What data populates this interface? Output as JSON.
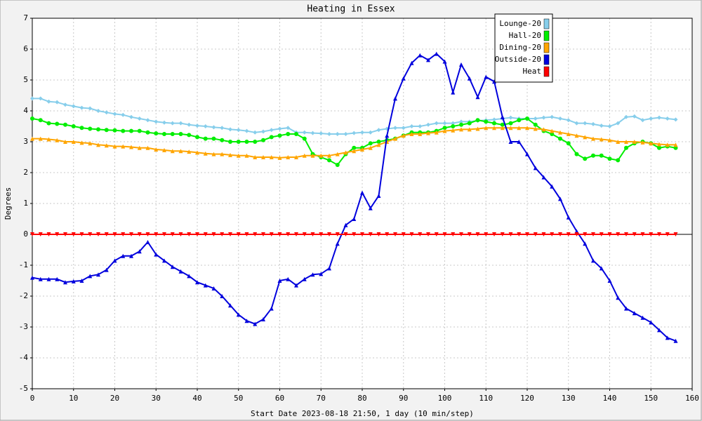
{
  "chart_data": {
    "type": "line",
    "title": "Heating in Essex",
    "x_label": "Start Date 2023-08-18 21:50, 1 day (10 min/step)",
    "y_label": "Degrees",
    "x": [
      0,
      2,
      4,
      6,
      8,
      10,
      12,
      14,
      16,
      18,
      20,
      22,
      24,
      26,
      28,
      30,
      32,
      34,
      36,
      38,
      40,
      42,
      44,
      46,
      48,
      50,
      52,
      54,
      56,
      58,
      60,
      62,
      64,
      66,
      68,
      70,
      72,
      74,
      76,
      78,
      80,
      82,
      84,
      86,
      88,
      90,
      92,
      94,
      96,
      98,
      100,
      102,
      104,
      106,
      108,
      110,
      112,
      114,
      116,
      118,
      120,
      122,
      124,
      126,
      128,
      130,
      132,
      134,
      136,
      138,
      140,
      142,
      144,
      146,
      148,
      150,
      152,
      154,
      156
    ],
    "series": [
      {
        "name": "Lounge-20",
        "color": "#87ceeb",
        "marker": "diamond",
        "values": [
          4.4,
          4.4,
          4.3,
          4.28,
          4.2,
          4.15,
          4.1,
          4.08,
          4.0,
          3.95,
          3.9,
          3.87,
          3.8,
          3.75,
          3.7,
          3.65,
          3.62,
          3.6,
          3.6,
          3.55,
          3.52,
          3.5,
          3.47,
          3.45,
          3.4,
          3.38,
          3.35,
          3.3,
          3.33,
          3.38,
          3.42,
          3.45,
          3.3,
          3.3,
          3.28,
          3.27,
          3.25,
          3.25,
          3.25,
          3.28,
          3.3,
          3.3,
          3.38,
          3.42,
          3.45,
          3.45,
          3.5,
          3.5,
          3.55,
          3.6,
          3.6,
          3.6,
          3.65,
          3.65,
          3.68,
          3.7,
          3.72,
          3.75,
          3.78,
          3.75,
          3.75,
          3.75,
          3.78,
          3.8,
          3.75,
          3.7,
          3.6,
          3.6,
          3.57,
          3.52,
          3.5,
          3.6,
          3.8,
          3.82,
          3.7,
          3.75,
          3.78,
          3.75,
          3.72
        ]
      },
      {
        "name": "Hall-20",
        "color": "#00ee00",
        "marker": "circle",
        "values": [
          3.75,
          3.7,
          3.6,
          3.58,
          3.55,
          3.5,
          3.45,
          3.42,
          3.4,
          3.38,
          3.37,
          3.35,
          3.35,
          3.35,
          3.3,
          3.27,
          3.25,
          3.25,
          3.25,
          3.22,
          3.15,
          3.1,
          3.1,
          3.05,
          3.0,
          3.0,
          3.0,
          3.0,
          3.05,
          3.15,
          3.2,
          3.25,
          3.25,
          3.1,
          2.6,
          2.5,
          2.4,
          2.25,
          2.6,
          2.8,
          2.8,
          2.95,
          3.0,
          3.05,
          3.1,
          3.2,
          3.3,
          3.3,
          3.3,
          3.35,
          3.45,
          3.5,
          3.55,
          3.6,
          3.7,
          3.65,
          3.6,
          3.55,
          3.6,
          3.7,
          3.75,
          3.55,
          3.35,
          3.25,
          3.1,
          2.95,
          2.6,
          2.45,
          2.55,
          2.55,
          2.45,
          2.4,
          2.8,
          2.95,
          3.0,
          2.95,
          2.8,
          2.85,
          2.8
        ]
      },
      {
        "name": "Dining-20",
        "color": "#ffa500",
        "marker": "triangle",
        "values": [
          3.1,
          3.1,
          3.08,
          3.05,
          3.0,
          3.0,
          2.97,
          2.95,
          2.9,
          2.88,
          2.85,
          2.85,
          2.83,
          2.8,
          2.8,
          2.75,
          2.73,
          2.7,
          2.7,
          2.68,
          2.65,
          2.62,
          2.6,
          2.6,
          2.57,
          2.55,
          2.55,
          2.5,
          2.5,
          2.5,
          2.48,
          2.5,
          2.5,
          2.55,
          2.55,
          2.55,
          2.55,
          2.6,
          2.65,
          2.7,
          2.75,
          2.8,
          2.9,
          3.0,
          3.1,
          3.2,
          3.25,
          3.25,
          3.28,
          3.3,
          3.35,
          3.37,
          3.4,
          3.4,
          3.42,
          3.45,
          3.45,
          3.45,
          3.45,
          3.45,
          3.45,
          3.42,
          3.4,
          3.35,
          3.3,
          3.25,
          3.2,
          3.15,
          3.1,
          3.08,
          3.05,
          3.0,
          3.0,
          3.0,
          2.98,
          2.95,
          2.92,
          2.9,
          2.9
        ]
      },
      {
        "name": "Outside-20",
        "color": "#0000dd",
        "marker": "triangle",
        "values": [
          -1.4,
          -1.45,
          -1.45,
          -1.45,
          -1.55,
          -1.52,
          -1.5,
          -1.35,
          -1.3,
          -1.15,
          -0.85,
          -0.7,
          -0.7,
          -0.55,
          -0.25,
          -0.65,
          -0.85,
          -1.05,
          -1.2,
          -1.35,
          -1.55,
          -1.65,
          -1.75,
          -2.0,
          -2.3,
          -2.6,
          -2.8,
          -2.9,
          -2.75,
          -2.4,
          -1.5,
          -1.45,
          -1.65,
          -1.45,
          -1.3,
          -1.28,
          -1.1,
          -0.3,
          0.3,
          0.5,
          1.35,
          0.85,
          1.25,
          3.2,
          4.4,
          5.05,
          5.55,
          5.8,
          5.65,
          5.85,
          5.6,
          4.6,
          5.5,
          5.05,
          4.45,
          5.1,
          4.95,
          3.8,
          3.0,
          3.0,
          2.6,
          2.15,
          1.85,
          1.55,
          1.15,
          0.55,
          0.1,
          -0.3,
          -0.85,
          -1.1,
          -1.5,
          -2.05,
          -2.4,
          -2.55,
          -2.7,
          -2.85,
          -3.1,
          -3.35,
          -3.45
        ]
      },
      {
        "name": "Heat",
        "color": "#ff0000",
        "marker": "triangle-down",
        "values": [
          0,
          0,
          0,
          0,
          0,
          0,
          0,
          0,
          0,
          0,
          0,
          0,
          0,
          0,
          0,
          0,
          0,
          0,
          0,
          0,
          0,
          0,
          0,
          0,
          0,
          0,
          0,
          0,
          0,
          0,
          0,
          0,
          0,
          0,
          0,
          0,
          0,
          0,
          0,
          0,
          0,
          0,
          0,
          0,
          0,
          0,
          0,
          0,
          0,
          0,
          0,
          0,
          0,
          0,
          0,
          0,
          0,
          0,
          0,
          0,
          0,
          0,
          0,
          0,
          0,
          0,
          0,
          0,
          0,
          0,
          0,
          0,
          0,
          0,
          0,
          0,
          0,
          0,
          0
        ]
      }
    ],
    "xlim": [
      0,
      160
    ],
    "xticks": [
      0,
      10,
      20,
      30,
      40,
      50,
      60,
      70,
      80,
      90,
      100,
      110,
      120,
      130,
      140,
      150,
      160
    ],
    "ylim": [
      -5,
      7
    ],
    "yticks": [
      -5,
      -4,
      -3,
      -2,
      -1,
      0,
      1,
      2,
      3,
      4,
      5,
      6,
      7
    ],
    "grid": true,
    "legend": "top-right"
  }
}
